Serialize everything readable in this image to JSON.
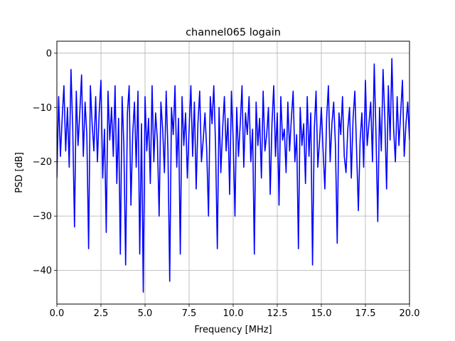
{
  "chart_data": {
    "type": "line",
    "title": "channel065 logain",
    "xlabel": "Frequency [MHz]",
    "ylabel": "PSD [dB]",
    "xlim": [
      0,
      20
    ],
    "ylim": [
      -46.2,
      2.2
    ],
    "xticks": [
      0,
      2.5,
      5,
      7.5,
      10,
      12.5,
      15,
      17.5,
      20
    ],
    "xtick_labels": [
      "0.0",
      "2.5",
      "5.0",
      "7.5",
      "10.0",
      "12.5",
      "15.0",
      "17.5",
      "20.0"
    ],
    "yticks": [
      0,
      -10,
      -20,
      -30,
      -40
    ],
    "ytick_labels": [
      "0",
      "−10",
      "−20",
      "−30",
      "−40"
    ],
    "grid": true,
    "series": [
      {
        "color": "#0000ff",
        "x": [
          0.0,
          0.1,
          0.2,
          0.3,
          0.4,
          0.5,
          0.6,
          0.7,
          0.8,
          0.9,
          1.0,
          1.1,
          1.2,
          1.3,
          1.4,
          1.5,
          1.6,
          1.7,
          1.8,
          1.9,
          2.0,
          2.1,
          2.2,
          2.3,
          2.4,
          2.5,
          2.6,
          2.7,
          2.8,
          2.9,
          3.0,
          3.1,
          3.2,
          3.3,
          3.4,
          3.5,
          3.6,
          3.7,
          3.8,
          3.9,
          4.0,
          4.1,
          4.2,
          4.3,
          4.4,
          4.5,
          4.6,
          4.7,
          4.8,
          4.9,
          5.0,
          5.1,
          5.2,
          5.3,
          5.4,
          5.5,
          5.6,
          5.7,
          5.8,
          5.9,
          6.0,
          6.1,
          6.2,
          6.3,
          6.4,
          6.5,
          6.6,
          6.7,
          6.8,
          6.9,
          7.0,
          7.1,
          7.2,
          7.3,
          7.4,
          7.5,
          7.6,
          7.7,
          7.8,
          7.9,
          8.0,
          8.1,
          8.2,
          8.3,
          8.4,
          8.5,
          8.6,
          8.7,
          8.8,
          8.9,
          9.0,
          9.1,
          9.2,
          9.3,
          9.4,
          9.5,
          9.6,
          9.7,
          9.8,
          9.9,
          10.0,
          10.1,
          10.2,
          10.3,
          10.4,
          10.5,
          10.6,
          10.7,
          10.8,
          10.9,
          11.0,
          11.1,
          11.2,
          11.3,
          11.4,
          11.5,
          11.6,
          11.7,
          11.8,
          11.9,
          12.0,
          12.1,
          12.2,
          12.3,
          12.4,
          12.5,
          12.6,
          12.7,
          12.8,
          12.9,
          13.0,
          13.1,
          13.2,
          13.3,
          13.4,
          13.5,
          13.6,
          13.7,
          13.8,
          13.9,
          14.0,
          14.1,
          14.2,
          14.3,
          14.4,
          14.5,
          14.6,
          14.7,
          14.8,
          14.9,
          15.0,
          15.1,
          15.2,
          15.3,
          15.4,
          15.5,
          15.6,
          15.7,
          15.8,
          15.9,
          16.0,
          16.1,
          16.2,
          16.3,
          16.4,
          16.5,
          16.6,
          16.7,
          16.8,
          16.9,
          17.0,
          17.1,
          17.2,
          17.3,
          17.4,
          17.5,
          17.6,
          17.7,
          17.8,
          17.9,
          18.0,
          18.1,
          18.2,
          18.3,
          18.4,
          18.5,
          18.6,
          18.7,
          18.8,
          18.9,
          19.0,
          19.1,
          19.2,
          19.3,
          19.4,
          19.5,
          19.6,
          19.7,
          19.8,
          19.9,
          20.0
        ],
        "y": [
          -23,
          -8,
          -19,
          -12,
          -6,
          -18,
          -10,
          -21,
          -3,
          -14,
          -32,
          -7,
          -17,
          -11,
          -4,
          -19,
          -9,
          -15,
          -36,
          -6,
          -13,
          -18,
          -8,
          -20,
          -11,
          -5,
          -23,
          -14,
          -33,
          -7,
          -16,
          -10,
          -19,
          -6,
          -24,
          -12,
          -37,
          -8,
          -17,
          -39,
          -11,
          -6,
          -28,
          -15,
          -9,
          -21,
          -7,
          -37,
          -13,
          -44,
          -8,
          -18,
          -12,
          -24,
          -6,
          -20,
          -11,
          -16,
          -30,
          -9,
          -14,
          -22,
          -7,
          -18,
          -42,
          -10,
          -15,
          -6,
          -21,
          -12,
          -37,
          -8,
          -17,
          -11,
          -23,
          -14,
          -6,
          -19,
          -9,
          -25,
          -13,
          -7,
          -20,
          -16,
          -11,
          -18,
          -30,
          -8,
          -13,
          -6,
          -17,
          -36,
          -10,
          -22,
          -14,
          -8,
          -18,
          -12,
          -26,
          -7,
          -16,
          -30,
          -10,
          -19,
          -13,
          -6,
          -21,
          -11,
          -15,
          -8,
          -20,
          -14,
          -37,
          -9,
          -17,
          -12,
          -23,
          -7,
          -18,
          -15,
          -10,
          -26,
          -13,
          -6,
          -19,
          -11,
          -28,
          -8,
          -16,
          -14,
          -22,
          -9,
          -18,
          -12,
          -7,
          -20,
          -15,
          -36,
          -10,
          -17,
          -13,
          -24,
          -8,
          -19,
          -11,
          -39,
          -14,
          -7,
          -21,
          -16,
          -10,
          -18,
          -25,
          -12,
          -6,
          -20,
          -13,
          -9,
          -17,
          -35,
          -11,
          -15,
          -8,
          -19,
          -22,
          -14,
          -10,
          -23,
          -12,
          -7,
          -18,
          -29,
          -16,
          -11,
          -21,
          -5,
          -17,
          -13,
          -9,
          -20,
          -2,
          -15,
          -31,
          -10,
          -18,
          -3,
          -12,
          -25,
          -6,
          -16,
          -1,
          -14,
          -20,
          -8,
          -17,
          -11,
          -5,
          -19,
          -13,
          -9,
          -16
        ]
      }
    ]
  }
}
